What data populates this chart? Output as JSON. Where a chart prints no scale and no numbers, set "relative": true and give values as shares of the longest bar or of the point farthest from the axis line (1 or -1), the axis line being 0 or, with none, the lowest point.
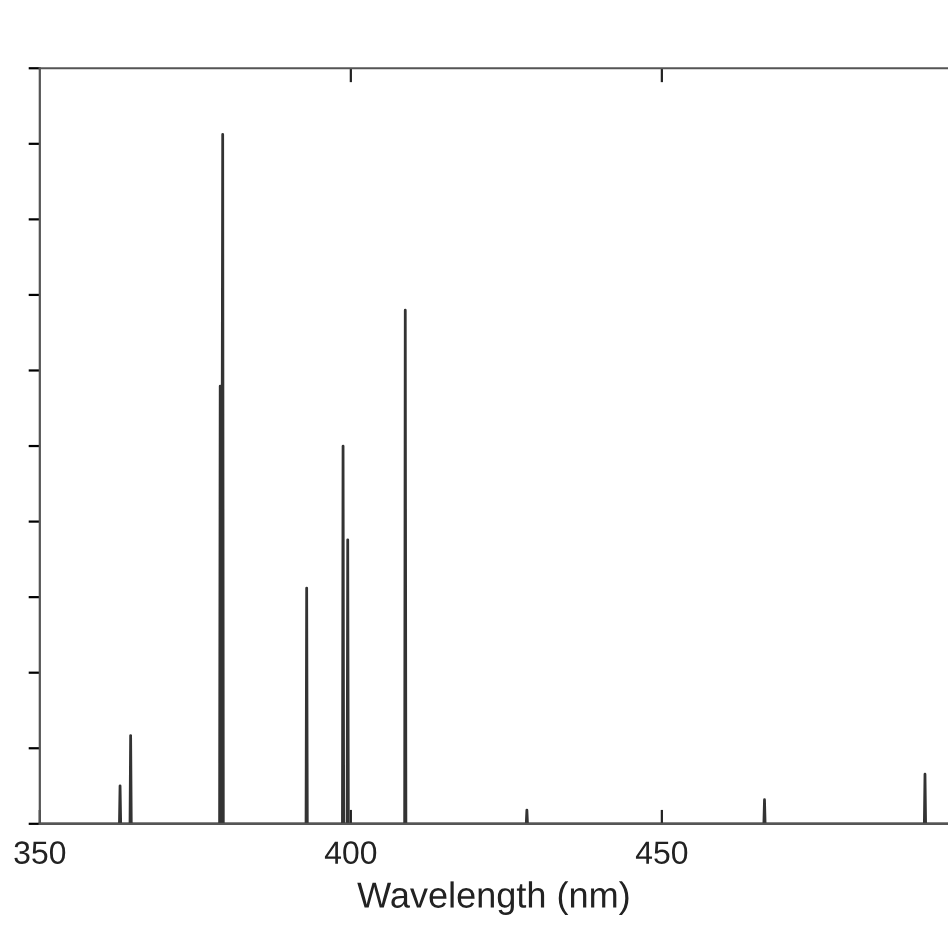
{
  "chart_data": {
    "type": "line",
    "xlabel": "Wavelength (nm)",
    "xlim": [
      350,
      496
    ],
    "xticks": [
      350,
      400,
      450
    ],
    "relative": true,
    "tick_labels": "x",
    "line_style": "solid",
    "series": [
      {
        "color": "#333333",
        "x": [
          350,
          362.8,
          362.9,
          363.0,
          364.5,
          364.6,
          364.7,
          378.9,
          379.0,
          379.2,
          379.4,
          379.5,
          392.8,
          392.9,
          393.0,
          398.65,
          398.75,
          398.85,
          399.4,
          399.5,
          399.6,
          408.65,
          408.75,
          408.85,
          428.2,
          428.3,
          428.4,
          466.4,
          466.5,
          466.6,
          492.2,
          492.3,
          492.4,
          496
        ],
        "values": [
          0,
          0,
          0.055,
          0,
          0,
          0.128,
          0,
          0,
          0.635,
          0,
          1.0,
          0,
          0,
          0.342,
          0,
          0,
          0.548,
          0,
          0,
          0.412,
          0,
          0,
          0.745,
          0,
          0,
          0.02,
          0,
          0,
          0.035,
          0,
          0,
          0.072,
          0,
          0
        ]
      }
    ]
  }
}
